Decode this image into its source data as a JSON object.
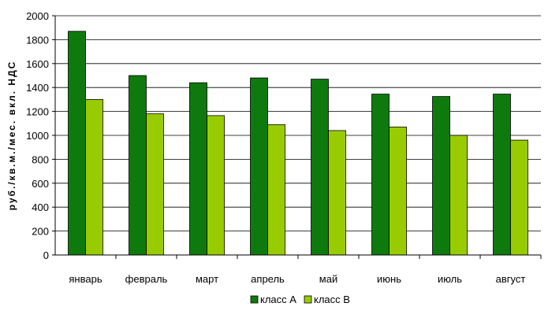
{
  "chart_data": {
    "type": "bar",
    "title": "",
    "xlabel": "",
    "ylabel": "руб./кв.м./мес. вкл. НДС",
    "ylim": [
      0,
      2000
    ],
    "yticks": [
      0,
      200,
      400,
      600,
      800,
      1000,
      1200,
      1400,
      1600,
      1800,
      2000
    ],
    "grid": true,
    "legend_position": "bottom-center",
    "categories": [
      "январь",
      "февраль",
      "март",
      "апрель",
      "май",
      "июнь",
      "июль",
      "август"
    ],
    "series": [
      {
        "name": "класс А",
        "color": "#0E7A0E",
        "values": [
          1870,
          1500,
          1440,
          1480,
          1470,
          1345,
          1325,
          1345
        ]
      },
      {
        "name": "класс В",
        "color": "#99CC00",
        "values": [
          1300,
          1180,
          1165,
          1090,
          1040,
          1070,
          1000,
          960
        ]
      }
    ]
  }
}
